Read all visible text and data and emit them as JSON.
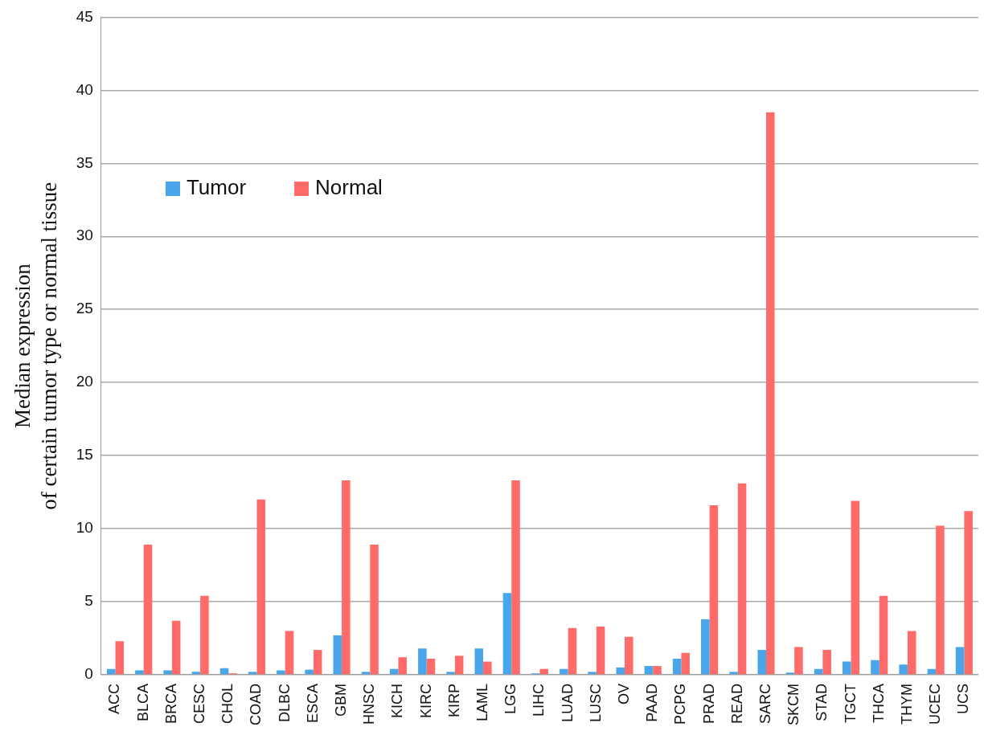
{
  "chart_data": {
    "type": "bar",
    "ylabel": "Median expression\nof certain tumor type or normal tissue",
    "categories": [
      "ACC",
      "BLCA",
      "BRCA",
      "CESC",
      "CHOL",
      "COAD",
      "DLBC",
      "ESCA",
      "GBM",
      "HNSC",
      "KICH",
      "KIRC",
      "KIRP",
      "LAML",
      "LGG",
      "LIHC",
      "LUAD",
      "LUSC",
      "OV",
      "PAAD",
      "PCPG",
      "PRAD",
      "READ",
      "SARC",
      "SKCM",
      "STAD",
      "TGCT",
      "THCA",
      "THYM",
      "UCEC",
      "UCS"
    ],
    "series": [
      {
        "name": "Tumor",
        "color": "#4aa6ea",
        "values": [
          0.4,
          0.3,
          0.3,
          0.2,
          0.45,
          0.2,
          0.3,
          0.35,
          2.7,
          0.2,
          0.4,
          1.8,
          0.2,
          1.8,
          5.6,
          0.1,
          0.4,
          0.2,
          0.5,
          0.6,
          1.1,
          3.8,
          0.2,
          1.7,
          0.15,
          0.4,
          0.9,
          1.0,
          0.7,
          0.4,
          1.9
        ]
      },
      {
        "name": "Normal",
        "color": "#ff6b68",
        "values": [
          2.3,
          8.9,
          3.7,
          5.4,
          0.1,
          12.0,
          3.0,
          1.7,
          13.3,
          8.9,
          1.2,
          1.1,
          1.3,
          0.9,
          13.3,
          0.4,
          3.2,
          3.3,
          2.6,
          0.6,
          1.5,
          11.6,
          13.1,
          38.5,
          1.9,
          1.7,
          11.9,
          5.4,
          3.0,
          10.2,
          11.2
        ]
      }
    ],
    "ylim": [
      0,
      45
    ],
    "yticks": [
      0,
      5,
      10,
      15,
      20,
      25,
      30,
      35,
      40,
      45
    ],
    "grid": "y",
    "legend": "top left"
  }
}
